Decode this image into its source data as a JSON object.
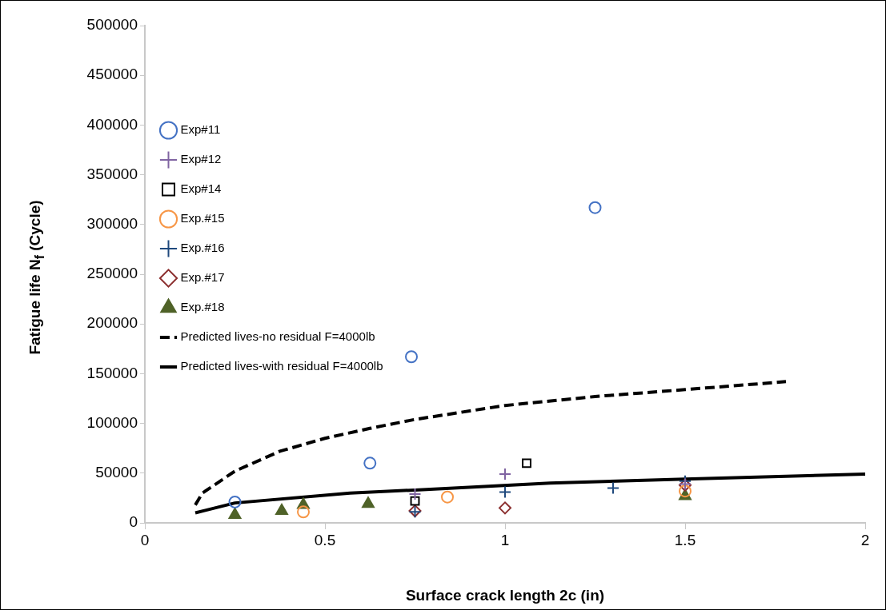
{
  "chart_data": {
    "type": "scatter",
    "xlabel": "Surface crack length 2c (in)",
    "ylabel": "Fatigue life N$_{f}$ (Cycle)",
    "xlim": [
      0,
      2
    ],
    "xticks": [
      0,
      0.5,
      1,
      1.5,
      2
    ],
    "ylim": [
      0,
      500000
    ],
    "yticks": [
      0,
      50000,
      100000,
      150000,
      200000,
      250000,
      300000,
      350000,
      400000,
      450000,
      500000
    ],
    "grid": false,
    "legend": "top",
    "series": [
      {
        "name": "Exp#11",
        "color": "#4472c4",
        "marker": "circle",
        "x": [
          0.25,
          0.625,
          0.74,
          1.25
        ],
        "values": [
          21000,
          60000,
          167000,
          317000
        ]
      },
      {
        "name": "Exp#12",
        "color": "#8064a2",
        "marker": "cross",
        "x": [
          0.75,
          1.0,
          1.5
        ],
        "values": [
          29000,
          49000,
          39000
        ]
      },
      {
        "name": "Exp#14",
        "color": "#000000",
        "marker": "square",
        "x": [
          0.75,
          1.06
        ],
        "values": [
          22000,
          60000
        ]
      },
      {
        "name": "Exp.#15",
        "color": "#f79646",
        "marker": "circle",
        "x": [
          0.44,
          0.84,
          1.5
        ],
        "values": [
          11000,
          26000,
          32000
        ]
      },
      {
        "name": "Exp.#16",
        "color": "#1f497d",
        "marker": "cross",
        "x": [
          0.75,
          1.0,
          1.3,
          1.5
        ],
        "values": [
          11000,
          31000,
          35000,
          42000
        ]
      },
      {
        "name": "Exp.#17",
        "color": "#8b2e2e",
        "marker": "diamond",
        "x": [
          0.75,
          1.0,
          1.5
        ],
        "values": [
          12000,
          15000,
          38000
        ]
      },
      {
        "name": "Exp.#18",
        "color": "#4f6228",
        "marker": "triangle",
        "x": [
          0.25,
          0.38,
          0.44,
          0.62,
          1.5
        ],
        "values": [
          8000,
          12000,
          18000,
          19000,
          27000
        ]
      },
      {
        "name": "Predicted lives-no residual F=4000lb",
        "type": "line",
        "color": "#000000",
        "marker": "none",
        "line_style": "dashed",
        "x": [
          0.14,
          0.16,
          0.25,
          0.375,
          0.5,
          0.625,
          0.75,
          0.875,
          1.0,
          1.25,
          1.5,
          1.78
        ],
        "values": [
          18000,
          30000,
          52000,
          72000,
          85000,
          95000,
          104000,
          111000,
          118000,
          127000,
          134000,
          142000
        ]
      },
      {
        "name": "Predicted lives-with residual F=4000lb",
        "type": "line",
        "color": "#000000",
        "marker": "none",
        "line_style": "solid",
        "x": [
          0.14,
          0.25,
          0.57,
          0.75,
          1.125,
          1.5,
          2.0
        ],
        "values": [
          10000,
          20000,
          30000,
          33000,
          40000,
          44000,
          49000
        ]
      }
    ]
  }
}
